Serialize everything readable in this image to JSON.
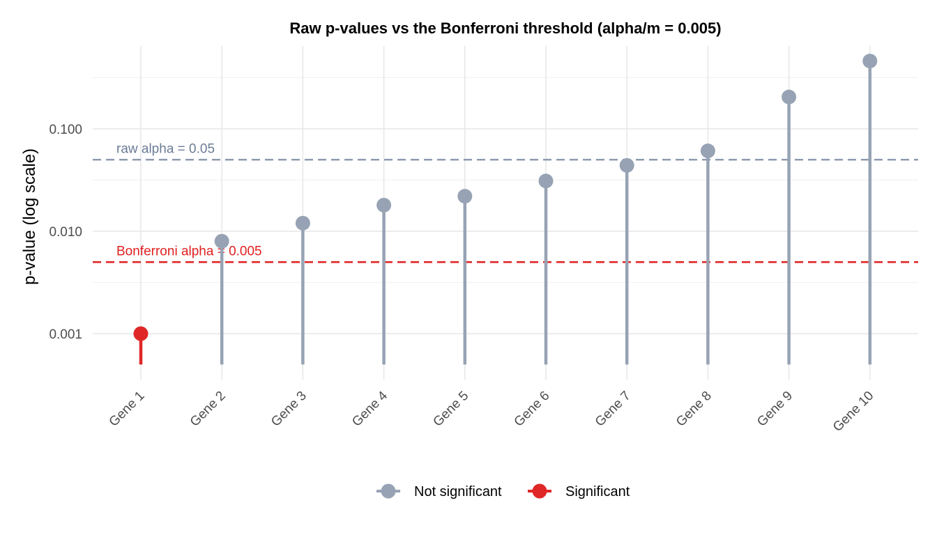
{
  "chart_data": {
    "type": "lollipop",
    "title": "Raw p-values vs the Bonferroni threshold (alpha/m = 0.005)",
    "xlabel": "",
    "ylabel": "p-value (log scale)",
    "y_scale": "log10",
    "ylim": [
      0.0005,
      0.5
    ],
    "y_ticks": [
      0.001,
      0.01,
      0.1
    ],
    "y_tick_labels": [
      "0.001",
      "0.010",
      "0.100"
    ],
    "grid": true,
    "categories": [
      "Gene 1",
      "Gene 2",
      "Gene 3",
      "Gene 4",
      "Gene 5",
      "Gene 6",
      "Gene 7",
      "Gene 8",
      "Gene 9",
      "Gene 10"
    ],
    "values": [
      0.001,
      0.008,
      0.012,
      0.018,
      0.022,
      0.031,
      0.044,
      0.061,
      0.205,
      0.46
    ],
    "status": [
      "Significant",
      "Not significant",
      "Not significant",
      "Not significant",
      "Not significant",
      "Not significant",
      "Not significant",
      "Not significant",
      "Not significant",
      "Not significant"
    ],
    "reference_lines": [
      {
        "value": 0.05,
        "label": "raw alpha = 0.05",
        "color": "#8e9bb0",
        "style": "dashed"
      },
      {
        "value": 0.005,
        "label": "Bonferroni alpha = 0.005",
        "color": "#e02020",
        "style": "dashed"
      }
    ],
    "legend": {
      "position": "bottom",
      "entries": [
        {
          "name": "Not significant",
          "color": "#97a3b4"
        },
        {
          "name": "Significant",
          "color": "#e02727"
        }
      ]
    }
  }
}
